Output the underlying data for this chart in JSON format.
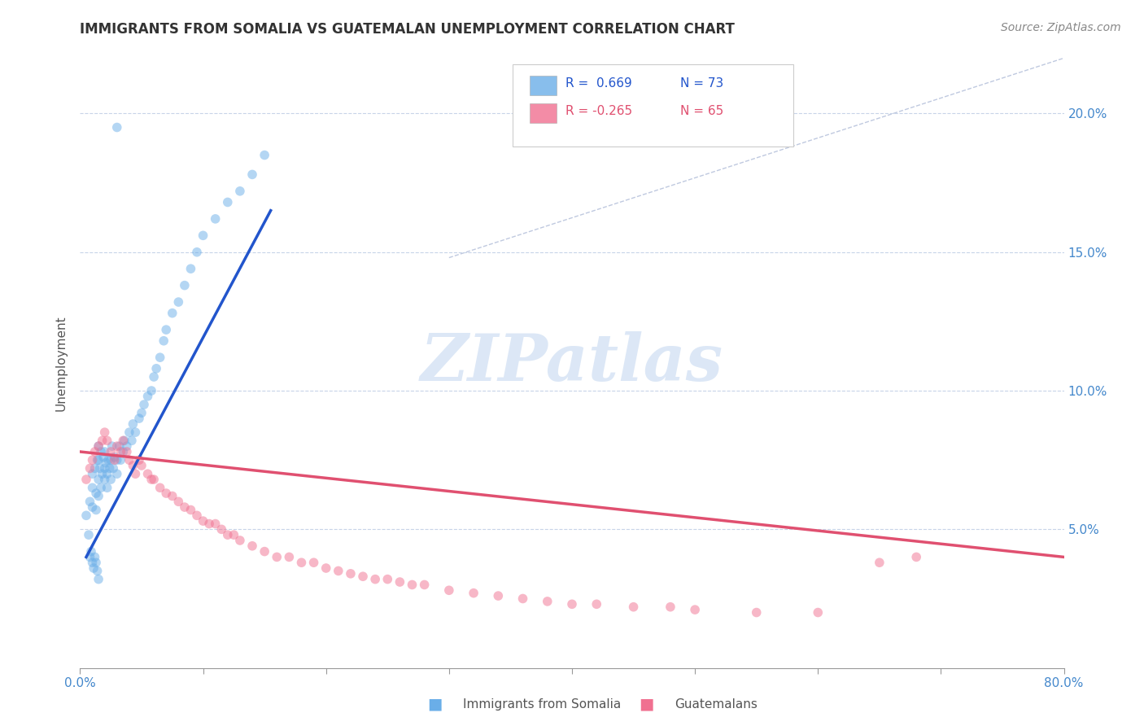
{
  "title": "IMMIGRANTS FROM SOMALIA VS GUATEMALAN UNEMPLOYMENT CORRELATION CHART",
  "source_text": "Source: ZipAtlas.com",
  "ylabel_left": "Unemployment",
  "legend_r1": "R =  0.669",
  "legend_n1": "N = 73",
  "legend_r2": "R = -0.265",
  "legend_n2": "N = 65",
  "legend_label1": "Immigrants from Somalia",
  "legend_label2": "Guatemalans",
  "xlim": [
    0.0,
    0.8
  ],
  "ylim": [
    0.0,
    0.22
  ],
  "right_yticks": [
    0.05,
    0.1,
    0.15,
    0.2
  ],
  "right_yticklabels": [
    "5.0%",
    "10.0%",
    "15.0%",
    "20.0%"
  ],
  "xtick_left_label": "0.0%",
  "xtick_right_label": "80.0%",
  "watermark": "ZIPatlas",
  "blue_scatter_x": [
    0.005,
    0.007,
    0.008,
    0.01,
    0.01,
    0.01,
    0.012,
    0.013,
    0.013,
    0.014,
    0.015,
    0.015,
    0.015,
    0.015,
    0.016,
    0.017,
    0.017,
    0.018,
    0.019,
    0.02,
    0.02,
    0.02,
    0.021,
    0.022,
    0.022,
    0.023,
    0.024,
    0.025,
    0.025,
    0.026,
    0.027,
    0.028,
    0.03,
    0.03,
    0.032,
    0.033,
    0.035,
    0.036,
    0.038,
    0.04,
    0.042,
    0.043,
    0.045,
    0.048,
    0.05,
    0.052,
    0.055,
    0.058,
    0.06,
    0.062,
    0.065,
    0.068,
    0.07,
    0.075,
    0.08,
    0.085,
    0.09,
    0.095,
    0.1,
    0.11,
    0.12,
    0.13,
    0.14,
    0.15,
    0.008,
    0.009,
    0.01,
    0.011,
    0.012,
    0.013,
    0.014,
    0.015,
    0.03
  ],
  "blue_scatter_y": [
    0.055,
    0.048,
    0.06,
    0.07,
    0.065,
    0.058,
    0.072,
    0.063,
    0.057,
    0.075,
    0.068,
    0.062,
    0.075,
    0.08,
    0.072,
    0.065,
    0.078,
    0.07,
    0.076,
    0.068,
    0.072,
    0.078,
    0.074,
    0.07,
    0.065,
    0.075,
    0.072,
    0.068,
    0.075,
    0.08,
    0.072,
    0.076,
    0.075,
    0.07,
    0.08,
    0.075,
    0.078,
    0.082,
    0.08,
    0.085,
    0.082,
    0.088,
    0.085,
    0.09,
    0.092,
    0.095,
    0.098,
    0.1,
    0.105,
    0.108,
    0.112,
    0.118,
    0.122,
    0.128,
    0.132,
    0.138,
    0.144,
    0.15,
    0.156,
    0.162,
    0.168,
    0.172,
    0.178,
    0.185,
    0.04,
    0.042,
    0.038,
    0.036,
    0.04,
    0.038,
    0.035,
    0.032,
    0.195
  ],
  "pink_scatter_x": [
    0.005,
    0.008,
    0.01,
    0.012,
    0.015,
    0.018,
    0.02,
    0.022,
    0.025,
    0.028,
    0.03,
    0.033,
    0.035,
    0.038,
    0.04,
    0.043,
    0.045,
    0.048,
    0.05,
    0.055,
    0.058,
    0.06,
    0.065,
    0.07,
    0.075,
    0.08,
    0.085,
    0.09,
    0.095,
    0.1,
    0.105,
    0.11,
    0.115,
    0.12,
    0.125,
    0.13,
    0.14,
    0.15,
    0.16,
    0.17,
    0.18,
    0.19,
    0.2,
    0.21,
    0.22,
    0.23,
    0.24,
    0.25,
    0.26,
    0.27,
    0.28,
    0.3,
    0.32,
    0.34,
    0.36,
    0.38,
    0.4,
    0.42,
    0.45,
    0.48,
    0.5,
    0.55,
    0.6,
    0.65,
    0.68
  ],
  "pink_scatter_y": [
    0.068,
    0.072,
    0.075,
    0.078,
    0.08,
    0.082,
    0.085,
    0.082,
    0.078,
    0.075,
    0.08,
    0.078,
    0.082,
    0.078,
    0.075,
    0.073,
    0.07,
    0.075,
    0.073,
    0.07,
    0.068,
    0.068,
    0.065,
    0.063,
    0.062,
    0.06,
    0.058,
    0.057,
    0.055,
    0.053,
    0.052,
    0.052,
    0.05,
    0.048,
    0.048,
    0.046,
    0.044,
    0.042,
    0.04,
    0.04,
    0.038,
    0.038,
    0.036,
    0.035,
    0.034,
    0.033,
    0.032,
    0.032,
    0.031,
    0.03,
    0.03,
    0.028,
    0.027,
    0.026,
    0.025,
    0.024,
    0.023,
    0.023,
    0.022,
    0.022,
    0.021,
    0.02,
    0.02,
    0.038,
    0.04
  ],
  "blue_line_x": [
    0.005,
    0.155
  ],
  "blue_line_y": [
    0.04,
    0.165
  ],
  "pink_line_x": [
    0.0,
    0.8
  ],
  "pink_line_y": [
    0.078,
    0.04
  ],
  "diag_line_x": [
    0.3,
    0.8
  ],
  "diag_line_y": [
    0.148,
    0.22
  ],
  "blue_color": "#6aaee8",
  "pink_color": "#f07090",
  "blue_line_color": "#2255cc",
  "pink_line_color": "#e05070",
  "diag_line_color": "#b0bcd8",
  "grid_color": "#c8d4e8",
  "watermark_color_zip": "#c5d8f0",
  "watermark_color_atlas": "#a8c8e8",
  "background_color": "#ffffff",
  "title_fontsize": 12,
  "source_fontsize": 10,
  "marker_size": 70,
  "marker_alpha": 0.5
}
